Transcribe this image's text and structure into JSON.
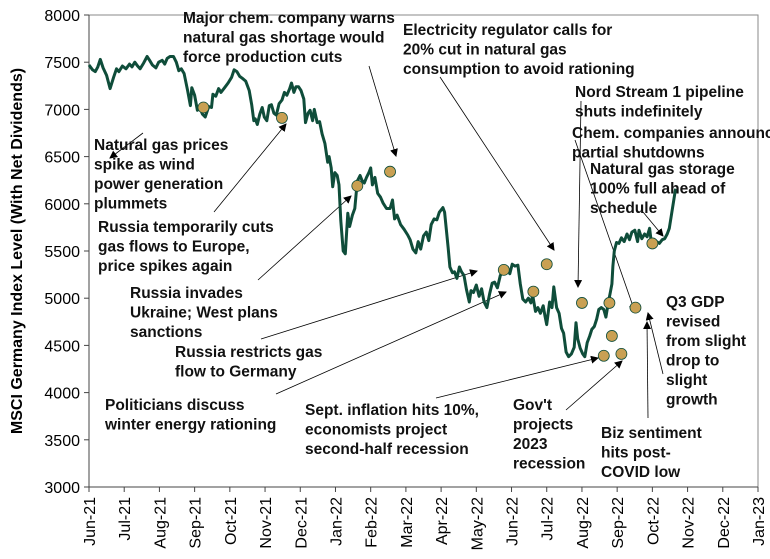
{
  "chart_data": {
    "type": "line",
    "title": "",
    "xlabel": "",
    "ylabel": "MSCI Germany Index Level (With Net Dividends)",
    "ylim": [
      3000,
      8000
    ],
    "yticks": [
      3000,
      3500,
      4000,
      4500,
      5000,
      5500,
      6000,
      6500,
      7000,
      7500,
      8000
    ],
    "ytick_labels": [
      "3000",
      "3500",
      "4000",
      "4500",
      "5000",
      "5500",
      "6000",
      "6500",
      "7000",
      "7500",
      "8000"
    ],
    "xlim": [
      "2021-06-01",
      "2023-01-01"
    ],
    "xtick_labels": [
      "Jun-21",
      "Jul-21",
      "Aug-21",
      "Sep-21",
      "Oct-21",
      "Nov-21",
      "Dec-21",
      "Jan-22",
      "Feb-22",
      "Mar-22",
      "Apr-22",
      "May-22",
      "Jun-22",
      "Jul-22",
      "Aug-22",
      "Sep-22",
      "Oct-22",
      "Nov-22",
      "Dec-22",
      "Jan-23"
    ],
    "grid": false,
    "line_color": "#0f4d3a",
    "marker_color": "#c9a053",
    "series": [
      {
        "name": "MSCI Germany",
        "points": [
          [
            0.0,
            7470
          ],
          [
            0.1,
            7420
          ],
          [
            0.18,
            7400
          ],
          [
            0.25,
            7450
          ],
          [
            0.32,
            7530
          ],
          [
            0.4,
            7440
          ],
          [
            0.5,
            7360
          ],
          [
            0.6,
            7220
          ],
          [
            0.7,
            7340
          ],
          [
            0.78,
            7430
          ],
          [
            0.85,
            7400
          ],
          [
            0.95,
            7460
          ],
          [
            1.05,
            7430
          ],
          [
            1.15,
            7480
          ],
          [
            1.22,
            7450
          ],
          [
            1.3,
            7500
          ],
          [
            1.38,
            7460
          ],
          [
            1.45,
            7430
          ],
          [
            1.55,
            7490
          ],
          [
            1.65,
            7560
          ],
          [
            1.72,
            7520
          ],
          [
            1.8,
            7470
          ],
          [
            1.9,
            7440
          ],
          [
            1.98,
            7500
          ],
          [
            2.08,
            7520
          ],
          [
            2.15,
            7480
          ],
          [
            2.22,
            7540
          ],
          [
            2.3,
            7560
          ],
          [
            2.4,
            7560
          ],
          [
            2.48,
            7500
          ],
          [
            2.55,
            7410
          ],
          [
            2.62,
            7430
          ],
          [
            2.7,
            7380
          ],
          [
            2.8,
            7200
          ],
          [
            2.88,
            7040
          ],
          [
            2.92,
            7230
          ],
          [
            3.0,
            7150
          ],
          [
            3.08,
            6990
          ],
          [
            3.15,
            7020
          ],
          [
            3.22,
            6950
          ],
          [
            3.3,
            6920
          ],
          [
            3.4,
            7030
          ],
          [
            3.48,
            7020
          ],
          [
            3.52,
            7160
          ],
          [
            3.6,
            7140
          ],
          [
            3.68,
            7220
          ],
          [
            3.75,
            7180
          ],
          [
            3.85,
            7230
          ],
          [
            3.95,
            7280
          ],
          [
            4.05,
            7340
          ],
          [
            4.12,
            7420
          ],
          [
            4.2,
            7400
          ],
          [
            4.28,
            7350
          ],
          [
            4.35,
            7330
          ],
          [
            4.45,
            7300
          ],
          [
            4.55,
            7200
          ],
          [
            4.62,
            7050
          ],
          [
            4.68,
            6880
          ],
          [
            4.72,
            6900
          ],
          [
            4.78,
            6840
          ],
          [
            4.85,
            6950
          ],
          [
            4.92,
            7020
          ],
          [
            4.98,
            6920
          ],
          [
            5.05,
            6880
          ],
          [
            5.12,
            7040
          ],
          [
            5.18,
            7050
          ],
          [
            5.25,
            6960
          ],
          [
            5.32,
            6940
          ],
          [
            5.4,
            7060
          ],
          [
            5.48,
            7100
          ],
          [
            5.55,
            7180
          ],
          [
            5.62,
            7150
          ],
          [
            5.7,
            7220
          ],
          [
            5.75,
            7280
          ],
          [
            5.82,
            7180
          ],
          [
            5.88,
            7240
          ],
          [
            5.95,
            7240
          ],
          [
            6.02,
            7200
          ],
          [
            6.1,
            7110
          ],
          [
            6.15,
            6860
          ],
          [
            6.22,
            6960
          ],
          [
            6.28,
            6990
          ],
          [
            6.35,
            6880
          ],
          [
            6.4,
            7000
          ],
          [
            6.48,
            6860
          ],
          [
            6.55,
            6870
          ],
          [
            6.62,
            6740
          ],
          [
            6.7,
            6640
          ],
          [
            6.78,
            6440
          ],
          [
            6.82,
            6500
          ],
          [
            6.88,
            6380
          ],
          [
            6.92,
            6180
          ],
          [
            6.98,
            6330
          ],
          [
            7.05,
            6300
          ],
          [
            7.1,
            6200
          ],
          [
            7.15,
            5820
          ],
          [
            7.22,
            5500
          ],
          [
            7.28,
            5470
          ],
          [
            7.35,
            5900
          ],
          [
            7.4,
            5760
          ],
          [
            7.48,
            5880
          ],
          [
            7.55,
            5950
          ],
          [
            7.62,
            6240
          ],
          [
            7.7,
            6300
          ],
          [
            7.75,
            6250
          ],
          [
            7.82,
            6220
          ],
          [
            7.88,
            6280
          ],
          [
            7.95,
            6330
          ],
          [
            8.0,
            6380
          ],
          [
            8.05,
            6200
          ],
          [
            8.12,
            6280
          ],
          [
            8.2,
            6110
          ],
          [
            8.28,
            6070
          ],
          [
            8.35,
            6010
          ],
          [
            8.45,
            5950
          ],
          [
            8.55,
            5950
          ],
          [
            8.62,
            6040
          ],
          [
            8.68,
            5840
          ],
          [
            8.75,
            5880
          ],
          [
            8.85,
            5780
          ],
          [
            8.95,
            5730
          ],
          [
            9.05,
            5670
          ],
          [
            9.12,
            5620
          ],
          [
            9.2,
            5520
          ],
          [
            9.28,
            5480
          ],
          [
            9.35,
            5600
          ],
          [
            9.42,
            5520
          ],
          [
            9.5,
            5660
          ],
          [
            9.58,
            5700
          ],
          [
            9.65,
            5610
          ],
          [
            9.72,
            5780
          ],
          [
            9.8,
            5840
          ],
          [
            9.88,
            5830
          ],
          [
            9.95,
            5910
          ],
          [
            10.05,
            5960
          ],
          [
            10.1,
            5910
          ],
          [
            10.15,
            5720
          ],
          [
            10.2,
            5540
          ],
          [
            10.25,
            5330
          ],
          [
            10.32,
            5270
          ],
          [
            10.38,
            5280
          ],
          [
            10.45,
            5210
          ],
          [
            10.52,
            5330
          ],
          [
            10.58,
            5280
          ],
          [
            10.65,
            5240
          ],
          [
            10.72,
            5090
          ],
          [
            10.8,
            4960
          ],
          [
            10.85,
            5080
          ],
          [
            10.92,
            5060
          ],
          [
            11.0,
            5140
          ],
          [
            11.08,
            5020
          ],
          [
            11.15,
            5100
          ],
          [
            11.22,
            4960
          ],
          [
            11.3,
            4900
          ],
          [
            11.38,
            5050
          ],
          [
            11.45,
            5160
          ],
          [
            11.52,
            5170
          ],
          [
            11.6,
            5110
          ],
          [
            11.68,
            5240
          ],
          [
            11.75,
            5280
          ],
          [
            11.82,
            5260
          ],
          [
            11.88,
            5330
          ],
          [
            11.95,
            5260
          ],
          [
            12.02,
            5360
          ],
          [
            12.1,
            5340
          ],
          [
            12.18,
            5350
          ],
          [
            12.25,
            5150
          ],
          [
            12.32,
            4990
          ],
          [
            12.4,
            4960
          ],
          [
            12.48,
            5000
          ],
          [
            12.55,
            4950
          ],
          [
            12.6,
            5030
          ],
          [
            12.68,
            4860
          ],
          [
            12.75,
            4900
          ],
          [
            12.82,
            4840
          ],
          [
            12.9,
            4920
          ],
          [
            12.95,
            4810
          ],
          [
            13.0,
            4720
          ],
          [
            13.08,
            4960
          ],
          [
            13.15,
            4900
          ],
          [
            13.2,
            5120
          ],
          [
            13.28,
            4900
          ],
          [
            13.35,
            4840
          ],
          [
            13.42,
            4680
          ],
          [
            13.48,
            4630
          ],
          [
            13.55,
            4430
          ],
          [
            13.62,
            4380
          ],
          [
            13.7,
            4410
          ],
          [
            13.78,
            4480
          ],
          [
            13.83,
            4740
          ],
          [
            13.88,
            4570
          ],
          [
            13.95,
            4470
          ],
          [
            14.02,
            4410
          ],
          [
            14.08,
            4380
          ],
          [
            14.15,
            4530
          ],
          [
            14.22,
            4600
          ],
          [
            14.28,
            4670
          ],
          [
            14.35,
            4700
          ],
          [
            14.42,
            4780
          ],
          [
            14.48,
            4880
          ],
          [
            14.55,
            4900
          ],
          [
            14.62,
            4880
          ],
          [
            14.68,
            4800
          ],
          [
            14.75,
            4960
          ],
          [
            14.8,
            5050
          ],
          [
            14.85,
            5150
          ],
          [
            14.88,
            5340
          ],
          [
            14.92,
            5500
          ],
          [
            14.98,
            5590
          ],
          [
            15.05,
            5580
          ],
          [
            15.12,
            5640
          ],
          [
            15.2,
            5600
          ],
          [
            15.28,
            5680
          ],
          [
            15.35,
            5620
          ],
          [
            15.42,
            5700
          ],
          [
            15.5,
            5720
          ],
          [
            15.58,
            5600
          ],
          [
            15.62,
            5720
          ],
          [
            15.7,
            5630
          ],
          [
            15.78,
            5680
          ],
          [
            15.85,
            5650
          ],
          [
            15.92,
            5740
          ],
          [
            15.98,
            5560
          ],
          [
            16.05,
            5560
          ],
          [
            16.12,
            5600
          ],
          [
            16.2,
            5580
          ],
          [
            16.28,
            5620
          ],
          [
            16.35,
            5630
          ],
          [
            16.42,
            5680
          ],
          [
            16.48,
            5740
          ],
          [
            16.55,
            5900
          ],
          [
            16.6,
            6020
          ],
          [
            16.66,
            6160
          ]
        ]
      }
    ],
    "highlighted_points": [
      {
        "label": "Natural gas prices spike as wind power generation plummets",
        "t": 3.25,
        "value": 7020
      },
      {
        "label": "Russia temporarily cuts gas flows to Europe, price spikes again",
        "t": 5.48,
        "value": 6910
      },
      {
        "label": "Russia invades Ukraine; West plans sanctions",
        "t": 7.62,
        "value": 6190
      },
      {
        "label": "Major chem. company warns natural gas shortage would force production cuts",
        "t": 8.55,
        "value": 6340
      },
      {
        "label": "Russia restricts gas flow to Germany",
        "t": 11.78,
        "value": 5300
      },
      {
        "label": "Politicians discuss winter energy rationing",
        "t": 12.62,
        "value": 5070
      },
      {
        "label": "Electricity regulator calls for 20% cut in natural gas consumption to avoid rationing",
        "t": 13.0,
        "value": 5360
      },
      {
        "label": "Nord Stream 1 pipeline shuts indefinitely",
        "t": 14.0,
        "value": 4950
      },
      {
        "label": "Sept. inflation hits 10%, economists project second-half recession",
        "t": 14.62,
        "value": 4390
      },
      {
        "label": "Gov't projects 2023 recession",
        "t": 14.85,
        "value": 4600
      },
      {
        "label": "Chem. companies announce partial shutdowns",
        "t": 14.78,
        "value": 4950
      },
      {
        "label": "Biz sentiment hits post-COVID low",
        "t": 15.12,
        "value": 4410
      },
      {
        "label": "Q3 GDP revised from slight drop to slight growth",
        "t": 15.52,
        "value": 4900
      },
      {
        "label": "Natural gas storage 100% full ahead of schedule",
        "t": 16.0,
        "value": 5580
      }
    ],
    "annotations": [
      {
        "id": "natgas",
        "lines": [
          "Natural gas prices",
          "spike as wind",
          "power generation",
          "plummets"
        ]
      },
      {
        "id": "russia-cuts",
        "lines": [
          "Russia temporarily cuts",
          "gas flows to Europe,",
          "price spikes again"
        ]
      },
      {
        "id": "invasion",
        "lines": [
          "Russia invades",
          "Ukraine; West plans",
          "sanctions"
        ]
      },
      {
        "id": "restricts",
        "lines": [
          "Russia restricts gas",
          "flow to Germany"
        ]
      },
      {
        "id": "politicians",
        "lines": [
          "Politicians discuss",
          "winter energy rationing"
        ]
      },
      {
        "id": "inflation",
        "lines": [
          "Sept. inflation hits 10%,",
          "economists project",
          "second-half recession"
        ]
      },
      {
        "id": "govt",
        "lines": [
          "Gov't",
          "projects",
          "2023",
          "recession"
        ]
      },
      {
        "id": "biz",
        "lines": [
          "Biz sentiment",
          "hits post-",
          "COVID low"
        ]
      },
      {
        "id": "q3gdp",
        "lines": [
          "Q3 GDP",
          "revised",
          "from slight",
          "drop to",
          "slight",
          "growth"
        ]
      },
      {
        "id": "storage",
        "lines": [
          "Natural gas storage",
          "100% full ahead of",
          "schedule"
        ]
      },
      {
        "id": "chemshut",
        "lines": [
          "Chem. companies announce",
          "partial shutdowns"
        ]
      },
      {
        "id": "nordstream",
        "lines": [
          "Nord Stream 1 pipeline",
          "shuts indefinitely"
        ]
      },
      {
        "id": "regulator",
        "lines": [
          "Electricity regulator calls for",
          "20% cut in natural gas",
          "consumption to avoid rationing"
        ]
      },
      {
        "id": "majorchem",
        "lines": [
          "Major chem. company warns",
          "natural gas shortage would",
          "force production cuts"
        ]
      }
    ]
  }
}
